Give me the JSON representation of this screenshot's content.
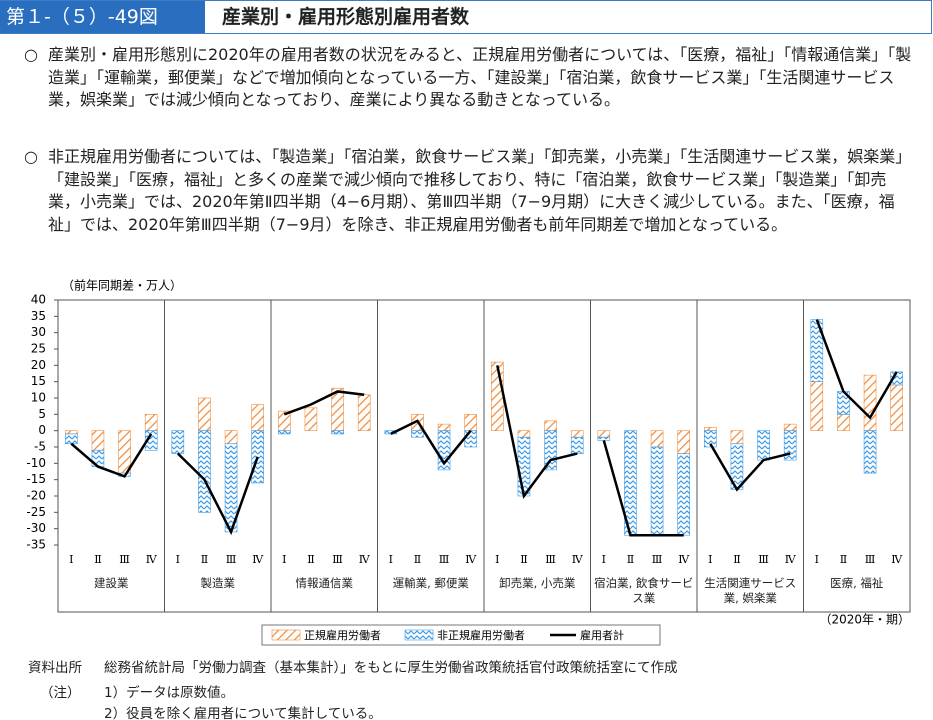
{
  "header": {
    "badge": "第１-（５）-49図",
    "title": "産業別・雇用形態別雇用者数"
  },
  "paragraphs": [
    {
      "marker": "○",
      "text": "産業別・雇用形態別に2020年の雇用者数の状況をみると、正規雇用労働者については、「医療，福祉」「情報通信業」「製造業」「運輸業，郵便業」などで増加傾向となっている一方、「建設業」「宿泊業，飲食サービス業」「生活関連サービス業，娯楽業」では減少傾向となっており、産業により異なる動きとなっている。"
    },
    {
      "marker": "○",
      "text": "非正規雇用労働者については、「製造業」「宿泊業，飲食サービス業」「卸売業，小売業」「生活関連サービス業，娯楽業」「建設業」「医療，福祉」と多くの産業で減少傾向で推移しており、特に「宿泊業，飲食サービス業」「製造業」「卸売業，小売業」では、2020年第Ⅱ四半期（4−6月期）、第Ⅲ四半期（7−9月期）に大きく減少している。また、「医療，福祉」では、2020年第Ⅲ四半期（7−9月）を除き、非正規雇用労働者も前年同期差で増加となっている。"
    }
  ],
  "chart_data": {
    "type": "stacked-bar-line",
    "y_label": "（前年同期差・万人）",
    "x_note": "（2020年・期）",
    "groups": [
      "建設業",
      "製造業",
      "情報通信業",
      "運輸業, 郵便業",
      "卸売業, 小売業",
      "宿泊業, 飲食サービス業",
      "生活関連サービス業, 娯楽業",
      "医療, 福祉"
    ],
    "quarters": [
      "Ⅰ",
      "Ⅱ",
      "Ⅲ",
      "Ⅳ"
    ],
    "series": [
      {
        "name": "正規雇用労働者",
        "color": "#f08c3c",
        "kind": "bar",
        "values": [
          [
            -1,
            -6,
            -13,
            5
          ],
          [
            0,
            10,
            -4,
            8
          ],
          [
            6,
            7,
            13,
            11
          ],
          [
            0,
            5,
            2,
            5
          ],
          [
            21,
            -2,
            3,
            -2
          ],
          [
            -2,
            0,
            -5,
            -7
          ],
          [
            1,
            -4,
            0,
            2
          ],
          [
            15,
            5,
            17,
            14
          ]
        ]
      },
      {
        "name": "非正規雇用労働者",
        "color": "#3c9be6",
        "kind": "bar",
        "values": [
          [
            -3,
            -5,
            -1,
            -6
          ],
          [
            -7,
            -25,
            -27,
            -16
          ],
          [
            -1,
            0,
            -1,
            0
          ],
          [
            -1,
            -2,
            -12,
            -5
          ],
          [
            0,
            -18,
            -12,
            -5
          ],
          [
            -1,
            -32,
            -27,
            -25
          ],
          [
            -5,
            -14,
            -9,
            -9
          ],
          [
            19,
            7,
            -13,
            4
          ]
        ]
      },
      {
        "name": "雇用者計",
        "color": "#000000",
        "kind": "line",
        "values": [
          [
            -4,
            -11,
            -14,
            -1
          ],
          [
            -7,
            -15,
            -31,
            -8
          ],
          [
            5,
            8,
            12,
            11
          ],
          [
            -1,
            3,
            -10,
            0
          ],
          [
            20,
            -20,
            -9,
            -7
          ],
          [
            -3,
            -32,
            -32,
            -32
          ],
          [
            -4,
            -18,
            -9,
            -7
          ],
          [
            34,
            12,
            4,
            18
          ]
        ]
      }
    ],
    "ylim": [
      -35,
      40
    ],
    "yticks": [
      -35,
      -30,
      -25,
      -20,
      -15,
      -10,
      -5,
      0,
      5,
      10,
      15,
      20,
      25,
      30,
      35,
      40
    ]
  },
  "notes": {
    "source_label": "資料出所",
    "source": "総務省統計局「労働力調査（基本集計）」をもとに厚生労働省政策統括官付政策統括室にて作成",
    "note_label": "（注）",
    "items": [
      "1）データは原数値。",
      "2）役員を除く雇用者について集計している。"
    ]
  }
}
